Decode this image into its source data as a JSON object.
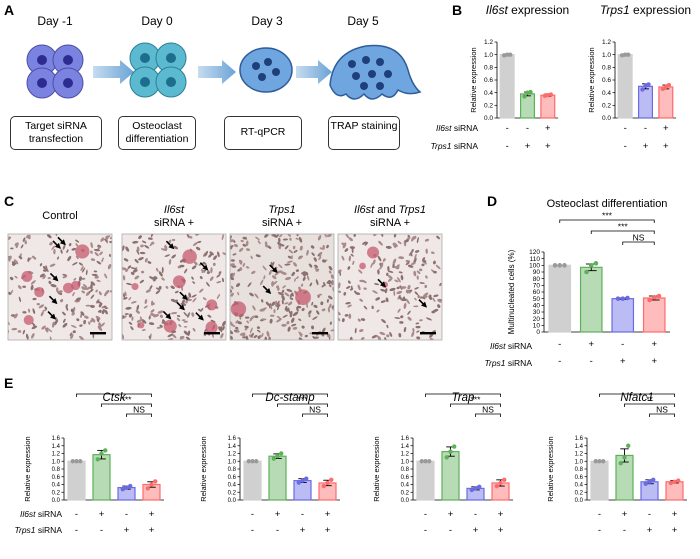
{
  "panels": {
    "A": "A",
    "B": "B",
    "C": "C",
    "D": "D",
    "E": "E"
  },
  "timeline": {
    "steps": [
      {
        "day": "Day -1",
        "label": "Target siRNA transfection"
      },
      {
        "day": "Day 0",
        "label": "Osteoclast differentiation"
      },
      {
        "day": "Day 3",
        "label": "RT-qPCR"
      },
      {
        "day": "Day 5",
        "label": "TRAP staining"
      }
    ]
  },
  "photos": [
    {
      "title_italic": "",
      "title": "Control",
      "sub": ""
    },
    {
      "title_italic": "Il6st",
      "title": "",
      "sub": "siRNA +"
    },
    {
      "title_italic": "Trps1",
      "title": "",
      "sub": "siRNA +"
    },
    {
      "title_italic": "Il6st",
      "title": " and ",
      "title_italic2": "Trps1",
      "sub": "siRNA +"
    }
  ],
  "grouping": {
    "rows": [
      {
        "gene": "Il6st",
        "suffix": " siRNA",
        "signs": [
          "-",
          "+",
          "-",
          "+"
        ]
      },
      {
        "gene": "Trps1",
        "suffix": " siRNA",
        "signs": [
          "-",
          "-",
          "+",
          "+"
        ]
      }
    ],
    "rows_B": [
      {
        "gene": "Il6st",
        "suffix": " siRNA",
        "signs": [
          "-",
          "-",
          "+"
        ]
      },
      {
        "gene": "Trps1",
        "suffix": " siRNA",
        "signs": [
          "-",
          "+",
          "+"
        ]
      }
    ]
  },
  "colors": {
    "control": "#cccccc",
    "il6st": "#5fb05a",
    "trps1": "#6a6ae6",
    "both": "#ff6a6a"
  },
  "chart_data": [
    {
      "id": "B1",
      "type": "bar",
      "title_italic": "Il6st",
      "title": " expression",
      "ylabel": "Relative expression",
      "ylim": [
        0,
        1.2
      ],
      "ticks": [
        0,
        0.2,
        0.4,
        0.6,
        0.8,
        1.0,
        1.2
      ],
      "values": [
        1.0,
        0.38,
        0.36
      ],
      "errors": [
        0,
        0.03,
        0.02
      ],
      "points": [
        [
          0.99,
          1.0,
          1.0
        ],
        [
          0.34,
          0.4,
          0.41
        ],
        [
          0.35,
          0.36,
          0.37
        ]
      ],
      "color_keys": [
        "control",
        "il6st",
        "both"
      ],
      "sig": []
    },
    {
      "id": "B2",
      "type": "bar",
      "title_italic": "Trps1",
      "title": " expression",
      "ylabel": "Relative expression",
      "ylim": [
        0,
        1.2
      ],
      "ticks": [
        0,
        0.2,
        0.4,
        0.6,
        0.8,
        1.0,
        1.2
      ],
      "values": [
        1.0,
        0.5,
        0.49
      ],
      "errors": [
        0,
        0.04,
        0.03
      ],
      "points": [
        [
          0.99,
          1.0,
          1.0
        ],
        [
          0.45,
          0.51,
          0.53
        ],
        [
          0.46,
          0.49,
          0.52
        ]
      ],
      "color_keys": [
        "control",
        "trps1",
        "both"
      ],
      "sig": []
    },
    {
      "id": "D",
      "type": "bar",
      "title": "Osteoclast differentiation",
      "ylabel": "Multinucleated cells (%)",
      "ylim": [
        0,
        120
      ],
      "ticks": [
        0,
        10,
        20,
        30,
        40,
        50,
        60,
        70,
        80,
        90,
        100,
        110,
        120
      ],
      "values": [
        100,
        97,
        50,
        51
      ],
      "errors": [
        0,
        5,
        1,
        3
      ],
      "points": [
        [
          100,
          100,
          100
        ],
        [
          90,
          100,
          103
        ],
        [
          50,
          50,
          51
        ],
        [
          48,
          52,
          54
        ]
      ],
      "color_keys": [
        "control",
        "il6st",
        "trps1",
        "both"
      ],
      "sig": [
        {
          "from": 0,
          "to": 3,
          "label": "***"
        },
        {
          "from": 1,
          "to": 3,
          "label": "***"
        },
        {
          "from": 2,
          "to": 3,
          "label": "NS"
        }
      ]
    },
    {
      "id": "E1",
      "type": "bar",
      "title_italic": "Ctsk",
      "ylabel": "Relative expression",
      "ylim": [
        0,
        1.6
      ],
      "ticks": [
        0,
        0.2,
        0.4,
        0.6,
        0.8,
        1.0,
        1.2,
        1.4,
        1.6
      ],
      "values": [
        1.0,
        1.17,
        0.32,
        0.4
      ],
      "errors": [
        0,
        0.11,
        0.04,
        0.07
      ],
      "points": [
        [
          1.0,
          1.0,
          1.0
        ],
        [
          1.05,
          1.2,
          1.28
        ],
        [
          0.28,
          0.32,
          0.36
        ],
        [
          0.3,
          0.4,
          0.48
        ]
      ],
      "color_keys": [
        "control",
        "il6st",
        "trps1",
        "both"
      ],
      "sig": [
        {
          "from": 0,
          "to": 3,
          "label": "**"
        },
        {
          "from": 1,
          "to": 3,
          "label": "***"
        },
        {
          "from": 2,
          "to": 3,
          "label": "NS"
        }
      ]
    },
    {
      "id": "E2",
      "type": "bar",
      "title_italic": "Dc-stamp",
      "ylabel": "Relative expression",
      "ylim": [
        0,
        1.6
      ],
      "ticks": [
        0,
        0.2,
        0.4,
        0.6,
        0.8,
        1.0,
        1.2,
        1.4,
        1.6
      ],
      "values": [
        1.0,
        1.13,
        0.5,
        0.44
      ],
      "errors": [
        0,
        0.06,
        0.05,
        0.07
      ],
      "points": [
        [
          1.0,
          1.0,
          1.0
        ],
        [
          1.07,
          1.13,
          1.2
        ],
        [
          0.45,
          0.5,
          0.55
        ],
        [
          0.36,
          0.44,
          0.52
        ]
      ],
      "color_keys": [
        "control",
        "il6st",
        "trps1",
        "both"
      ],
      "sig": [
        {
          "from": 0,
          "to": 3,
          "label": "***"
        },
        {
          "from": 1,
          "to": 3,
          "label": "***"
        },
        {
          "from": 2,
          "to": 3,
          "label": "NS"
        }
      ]
    },
    {
      "id": "E3",
      "type": "bar",
      "title_italic": "Trap",
      "ylabel": "Relative expression",
      "ylim": [
        0,
        1.6
      ],
      "ticks": [
        0,
        0.2,
        0.4,
        0.6,
        0.8,
        1.0,
        1.2,
        1.4,
        1.6
      ],
      "values": [
        1.0,
        1.25,
        0.3,
        0.44
      ],
      "errors": [
        0,
        0.12,
        0.04,
        0.08
      ],
      "points": [
        [
          1.0,
          1.0,
          1.0
        ],
        [
          1.1,
          1.25,
          1.38
        ],
        [
          0.26,
          0.3,
          0.34
        ],
        [
          0.36,
          0.44,
          0.52
        ]
      ],
      "color_keys": [
        "control",
        "il6st",
        "trps1",
        "both"
      ],
      "sig": [
        {
          "from": 0,
          "to": 3,
          "label": "**"
        },
        {
          "from": 1,
          "to": 3,
          "label": "***"
        },
        {
          "from": 2,
          "to": 3,
          "label": "NS"
        }
      ]
    },
    {
      "id": "E4",
      "type": "bar",
      "title_italic": "Nfatc1",
      "ylabel": "Relative expression",
      "ylim": [
        0,
        1.6
      ],
      "ticks": [
        0,
        0.2,
        0.4,
        0.6,
        0.8,
        1.0,
        1.2,
        1.4,
        1.6
      ],
      "values": [
        1.0,
        1.15,
        0.47,
        0.47
      ],
      "errors": [
        0,
        0.17,
        0.05,
        0.03
      ],
      "points": [
        [
          1.0,
          1.0,
          1.0
        ],
        [
          0.95,
          1.1,
          1.4
        ],
        [
          0.42,
          0.47,
          0.52
        ],
        [
          0.44,
          0.47,
          0.5
        ]
      ],
      "color_keys": [
        "control",
        "il6st",
        "trps1",
        "both"
      ],
      "sig": [
        {
          "from": 0,
          "to": 3,
          "label": "*"
        },
        {
          "from": 1,
          "to": 3,
          "label": "**"
        },
        {
          "from": 2,
          "to": 3,
          "label": "NS"
        }
      ]
    }
  ]
}
